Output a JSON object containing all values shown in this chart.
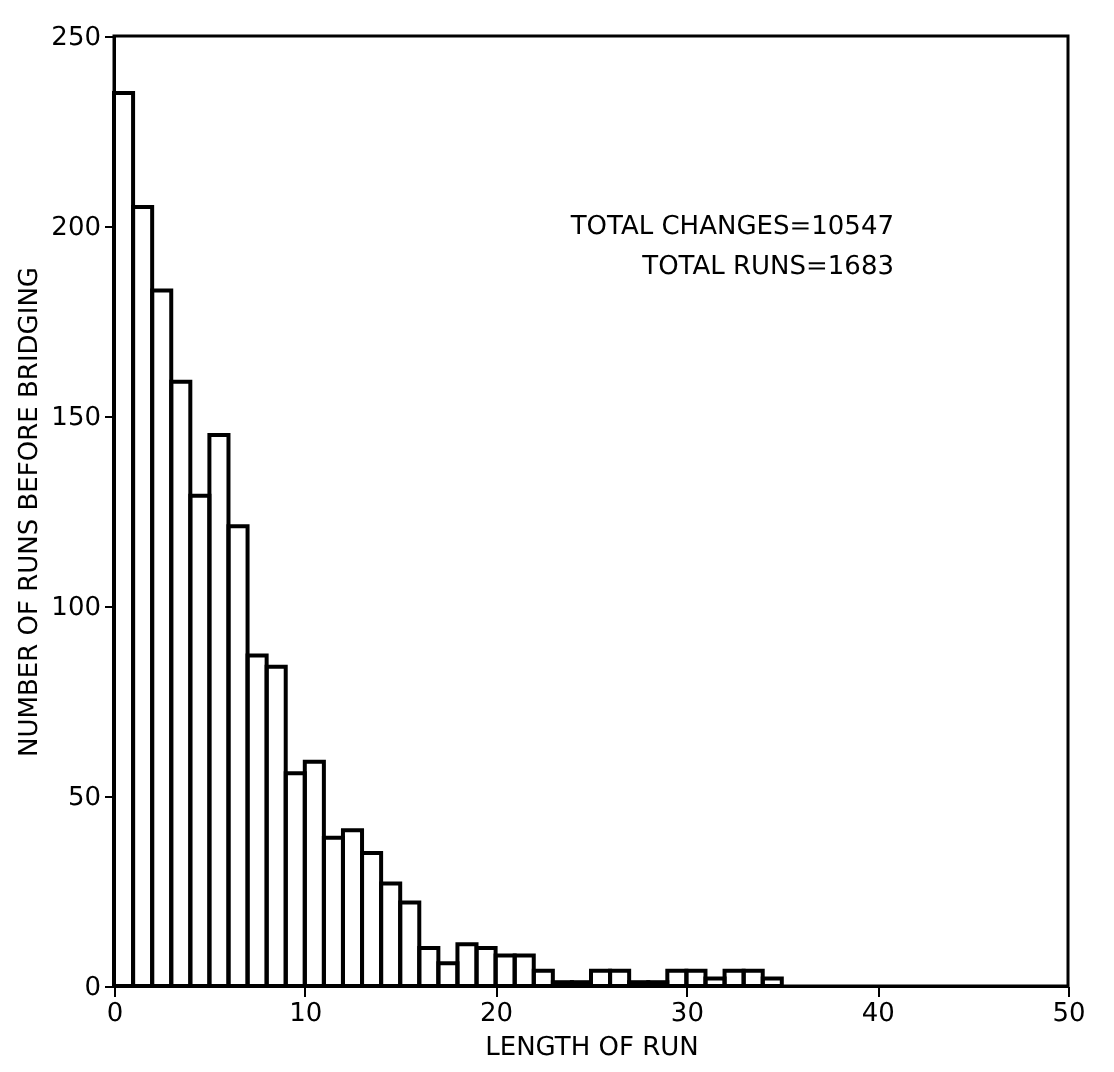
{
  "chart_data": {
    "type": "histogram",
    "xlabel": "LENGTH OF RUN",
    "ylabel": "NUMBER OF RUNS BEFORE BRIDGING",
    "bins": [
      0,
      1,
      2,
      3,
      4,
      5,
      6,
      7,
      8,
      9,
      10,
      11,
      12,
      13,
      14,
      15,
      16,
      17,
      18,
      19,
      20,
      21,
      22,
      23,
      24,
      25,
      26,
      27,
      28,
      29,
      30,
      31,
      32,
      33,
      34,
      35
    ],
    "values": [
      235,
      205,
      183,
      159,
      129,
      145,
      121,
      87,
      84,
      56,
      59,
      39,
      41,
      35,
      27,
      22,
      10,
      6,
      11,
      10,
      8,
      8,
      4,
      1,
      1,
      4,
      4,
      1,
      1,
      4,
      4,
      2,
      4,
      4,
      2
    ],
    "color": "#000000",
    "xlim": [
      0,
      50
    ],
    "xticks": [
      0,
      10,
      20,
      30,
      40,
      50
    ],
    "ylim": [
      0,
      250
    ],
    "yticks": [
      0,
      50,
      100,
      150,
      200,
      250
    ],
    "grid": false,
    "annotations": [
      "TOTAL CHANGES=10547",
      "TOTAL RUNS=1683"
    ]
  }
}
